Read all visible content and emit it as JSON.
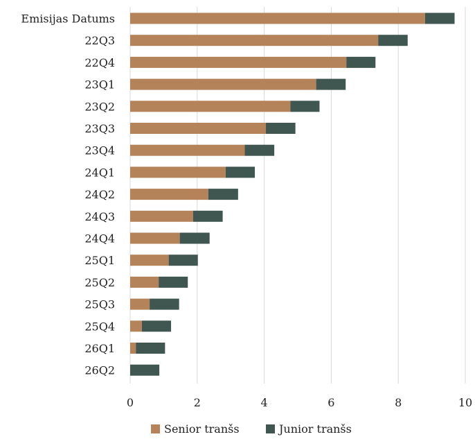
{
  "chart_data": {
    "type": "bar",
    "orientation": "horizontal",
    "stacked": true,
    "categories": [
      "Emisijas Datums",
      "22Q3",
      "22Q4",
      "23Q1",
      "23Q2",
      "23Q3",
      "23Q4",
      "24Q1",
      "24Q2",
      "24Q3",
      "24Q4",
      "25Q1",
      "25Q2",
      "25Q3",
      "25Q4",
      "26Q1",
      "26Q2"
    ],
    "series": [
      {
        "name": "Senior tranšs",
        "color": "#b5835a",
        "values": [
          8.8,
          7.4,
          6.45,
          5.55,
          4.78,
          4.05,
          3.42,
          2.85,
          2.33,
          1.88,
          1.48,
          1.15,
          0.85,
          0.58,
          0.35,
          0.17,
          0
        ]
      },
      {
        "name": "Junior tranšs",
        "color": "#3f5750",
        "values": [
          0.88,
          0.88,
          0.87,
          0.88,
          0.87,
          0.88,
          0.88,
          0.87,
          0.89,
          0.88,
          0.89,
          0.87,
          0.87,
          0.88,
          0.87,
          0.87,
          0.87
        ]
      }
    ],
    "xlim": [
      0,
      10
    ],
    "xticks": [
      0,
      2,
      4,
      6,
      8,
      10
    ],
    "grid": true,
    "legend_position": "bottom"
  }
}
